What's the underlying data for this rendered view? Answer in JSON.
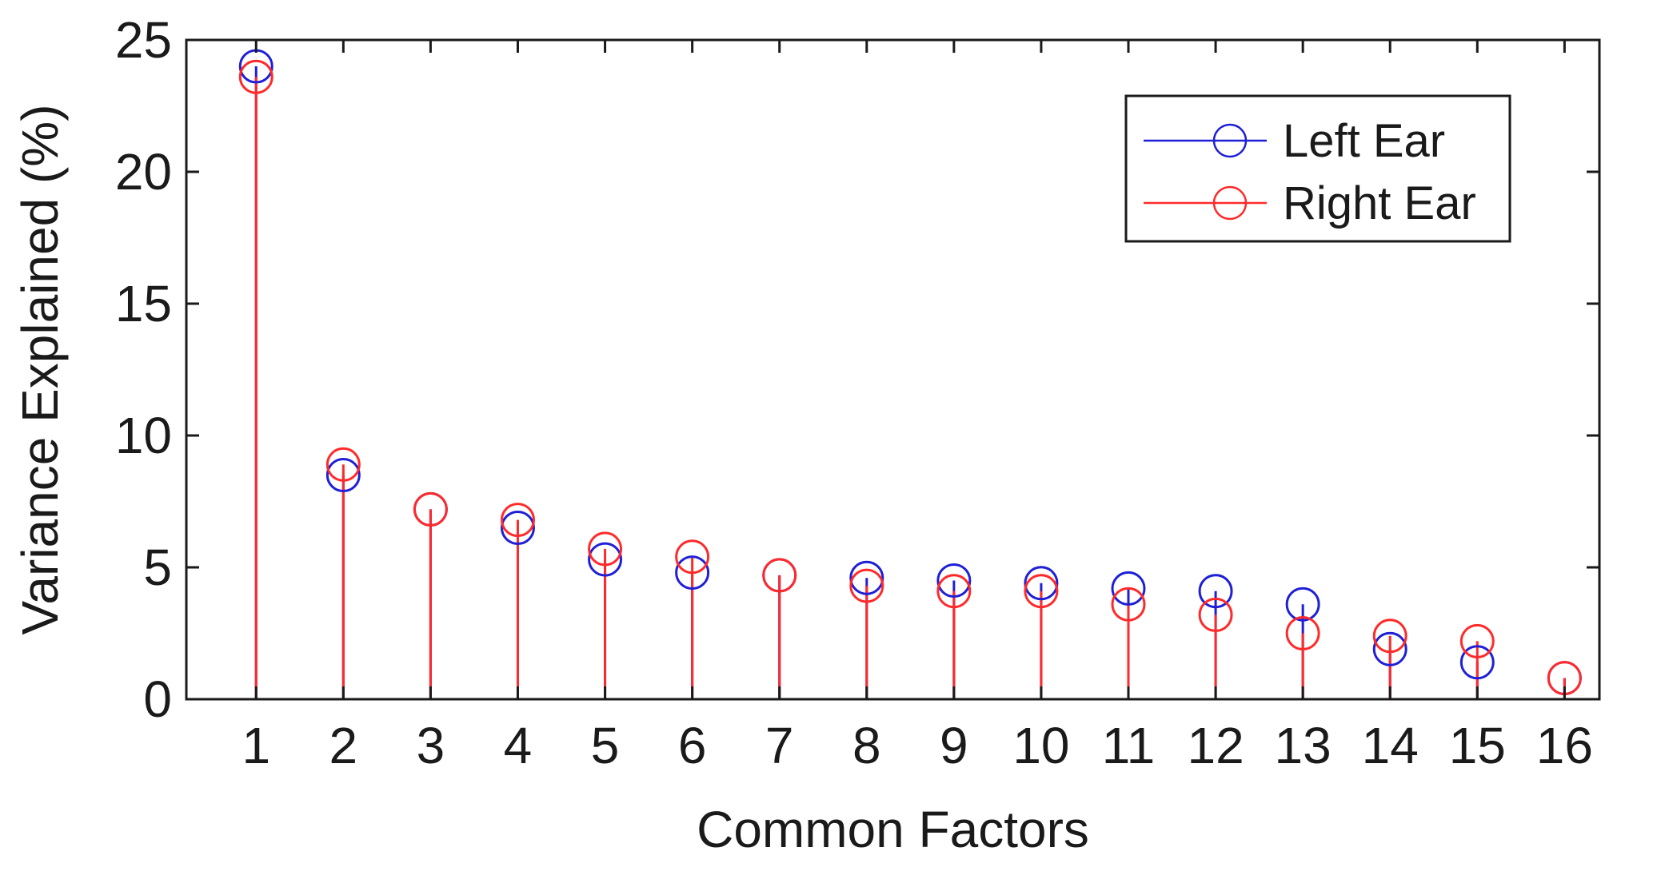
{
  "chart_data": {
    "type": "stem",
    "title": "",
    "xlabel": "Common Factors",
    "ylabel": "Variance Explained (%)",
    "xlim": [
      0,
      16
    ],
    "ylim": [
      0,
      25
    ],
    "x": [
      1,
      2,
      3,
      4,
      5,
      6,
      7,
      8,
      9,
      10,
      11,
      12,
      13,
      14,
      15,
      16
    ],
    "x_tick_labels": [
      "1",
      "2",
      "3",
      "4",
      "5",
      "6",
      "7",
      "8",
      "9",
      "10",
      "11",
      "12",
      "13",
      "14",
      "15",
      "16"
    ],
    "y_ticks": [
      0,
      5,
      10,
      15,
      20,
      25
    ],
    "y_tick_labels": [
      "0",
      "5",
      "10",
      "15",
      "20",
      "25"
    ],
    "grid": false,
    "legend_position": "top-right",
    "series": [
      {
        "name": "Left Ear",
        "color": "#1f1fd6",
        "marker": "circle",
        "values": [
          24.0,
          8.5,
          7.2,
          6.5,
          5.3,
          4.8,
          4.7,
          4.6,
          4.5,
          4.4,
          4.2,
          4.1,
          3.6,
          1.9,
          1.4,
          0.8
        ]
      },
      {
        "name": "Right Ear",
        "color": "#ff2a2a",
        "marker": "circle",
        "values": [
          23.6,
          8.9,
          7.2,
          6.8,
          5.7,
          5.4,
          4.7,
          4.3,
          4.1,
          4.1,
          3.6,
          3.2,
          2.5,
          2.4,
          2.2,
          0.8
        ]
      }
    ]
  }
}
